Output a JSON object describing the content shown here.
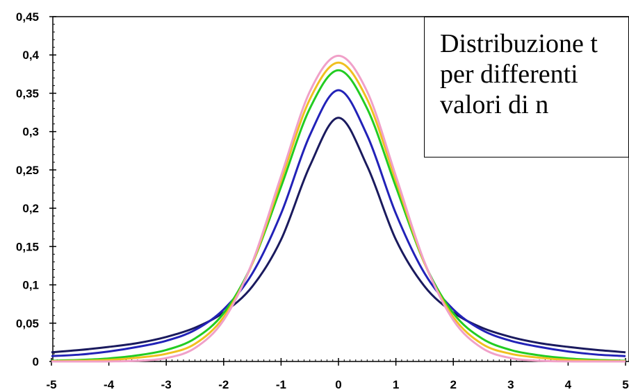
{
  "chart_data": {
    "type": "line",
    "title_lines": [
      "Distribuzione t",
      "per differenti",
      "valori di n"
    ],
    "xlabel": "",
    "ylabel": "",
    "xlim": [
      -5,
      5
    ],
    "ylim": [
      0,
      0.45
    ],
    "x_tick_labels": [
      "-5",
      "-4",
      "-3",
      "-2",
      "-1",
      "0",
      "1",
      "2",
      "3",
      "4",
      "5"
    ],
    "y_tick_labels": [
      "0",
      "0,05",
      "0,1",
      "0,15",
      "0,2",
      "0,25",
      "0,3",
      "0,35",
      "0,4",
      "0,45"
    ],
    "grid": false,
    "legend": "none",
    "series": [
      {
        "color": "#1a1a5e",
        "x": [
          -5,
          -4.5,
          -4,
          -3.5,
          -3,
          -2.5,
          -2,
          -1.5,
          -1,
          -0.5,
          0,
          0.5,
          1,
          1.5,
          2,
          2.5,
          3,
          3.5,
          4,
          4.5,
          5
        ],
        "y": [
          0.012,
          0.015,
          0.019,
          0.024,
          0.032,
          0.044,
          0.064,
          0.098,
          0.159,
          0.255,
          0.318,
          0.255,
          0.159,
          0.098,
          0.064,
          0.044,
          0.032,
          0.024,
          0.019,
          0.015,
          0.012
        ]
      },
      {
        "color": "#2222b8",
        "x": [
          -5,
          -4.5,
          -4,
          -3.5,
          -3,
          -2.5,
          -2,
          -1.5,
          -1,
          -0.5,
          0,
          0.5,
          1,
          1.5,
          2,
          2.5,
          3,
          3.5,
          4,
          4.5,
          5
        ],
        "y": [
          0.007,
          0.009,
          0.013,
          0.019,
          0.027,
          0.041,
          0.068,
          0.115,
          0.193,
          0.295,
          0.354,
          0.295,
          0.193,
          0.115,
          0.068,
          0.041,
          0.027,
          0.019,
          0.013,
          0.009,
          0.007
        ]
      },
      {
        "color": "#22cc22",
        "x": [
          -5,
          -4.5,
          -4,
          -3.5,
          -3,
          -2.5,
          -2,
          -1.5,
          -1,
          -0.5,
          0,
          0.5,
          1,
          1.5,
          2,
          2.5,
          3,
          3.5,
          4,
          4.5,
          5
        ],
        "y": [
          0.001,
          0.002,
          0.004,
          0.008,
          0.015,
          0.03,
          0.063,
          0.128,
          0.228,
          0.33,
          0.38,
          0.33,
          0.228,
          0.128,
          0.063,
          0.03,
          0.015,
          0.008,
          0.004,
          0.002,
          0.001
        ]
      },
      {
        "color": "#f0c020",
        "x": [
          -5,
          -4.5,
          -4,
          -3.5,
          -3,
          -2.5,
          -2,
          -1.5,
          -1,
          -0.5,
          0,
          0.5,
          1,
          1.5,
          2,
          2.5,
          3,
          3.5,
          4,
          4.5,
          5
        ],
        "y": [
          0.0004,
          0.001,
          0.002,
          0.005,
          0.01,
          0.023,
          0.058,
          0.128,
          0.236,
          0.342,
          0.39,
          0.342,
          0.236,
          0.128,
          0.058,
          0.023,
          0.01,
          0.005,
          0.002,
          0.001,
          0.0004
        ]
      },
      {
        "color": "#f0a0c8",
        "x": [
          -5,
          -4.5,
          -4,
          -3.5,
          -3,
          -2.5,
          -2,
          -1.5,
          -1,
          -0.5,
          0,
          0.5,
          1,
          1.5,
          2,
          2.5,
          3,
          3.5,
          4,
          4.5,
          5
        ],
        "y": [
          0.0,
          0.0,
          0.0001,
          0.0009,
          0.0044,
          0.0175,
          0.054,
          0.1295,
          0.242,
          0.3521,
          0.399,
          0.3521,
          0.242,
          0.1295,
          0.054,
          0.0175,
          0.0044,
          0.0009,
          0.0001,
          0.0,
          0.0
        ]
      }
    ]
  }
}
